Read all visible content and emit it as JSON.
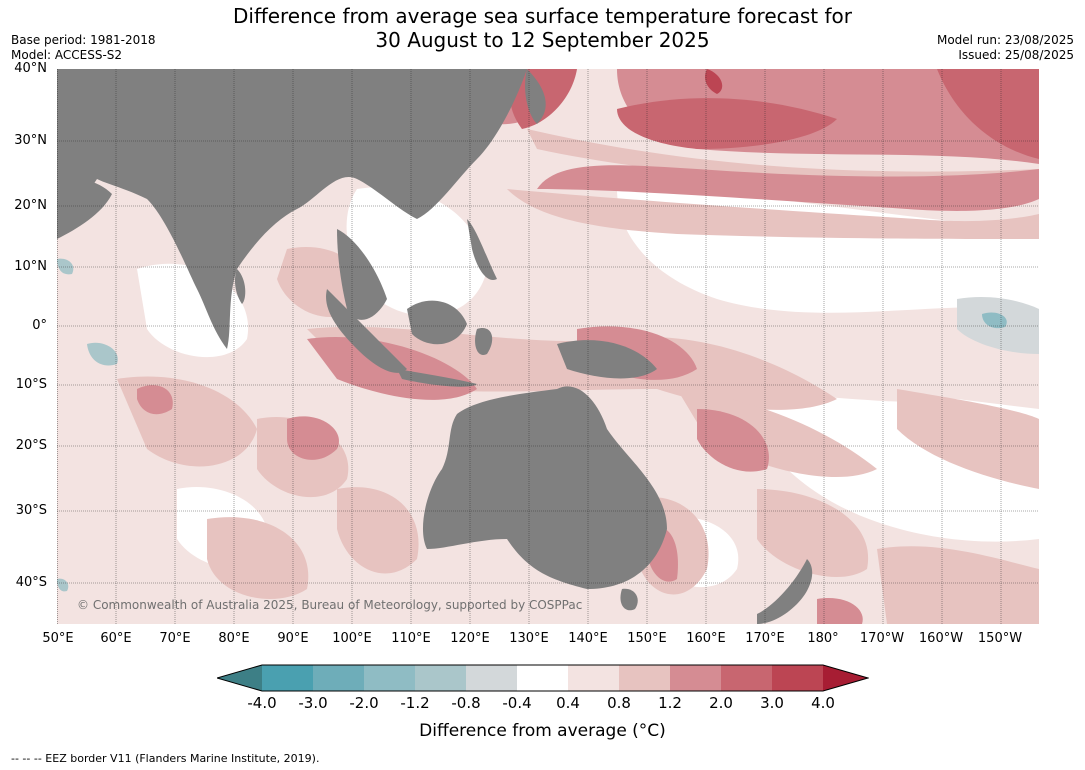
{
  "title_line1": "Difference from average sea surface temperature forecast for",
  "title_line2": "30 August to 12 September 2025",
  "base_period": "Base period: 1981-2018",
  "model": "Model: ACCESS-S2",
  "model_run": "Model run: 23/08/2025",
  "issued": "Issued: 25/08/2025",
  "lat_labels": [
    "40°N",
    "30°N",
    "20°N",
    "10°N",
    "0°",
    "10°S",
    "20°S",
    "30°S",
    "40°S"
  ],
  "lon_labels": [
    "50°E",
    "60°E",
    "70°E",
    "80°E",
    "90°E",
    "100°E",
    "110°E",
    "120°E",
    "130°E",
    "140°E",
    "150°E",
    "160°E",
    "170°E",
    "180°",
    "170°W",
    "160°W",
    "150°W"
  ],
  "copyright": "© Commonwealth of Australia 2025, Bureau of Meteorology, supported by COSPPac",
  "colorbar": {
    "ticks": [
      "-4.0",
      "-3.0",
      "-2.0",
      "-1.2",
      "-0.8",
      "-0.4",
      "0.4",
      "0.8",
      "1.2",
      "2.0",
      "3.0",
      "4.0"
    ],
    "label": "Difference from average (°C)",
    "colors": [
      "#3d7f86",
      "#4aa0b0",
      "#6eadb9",
      "#8fbcc4",
      "#aac6ca",
      "#d3d8da",
      "#ffffff",
      "#f3e3e1",
      "#e7c3c0",
      "#d58c93",
      "#c86670",
      "#bc4553",
      "#a71d33"
    ]
  },
  "footer": "--  --  -- EEZ border V11 (Flanders Marine Institute, 2019)."
}
